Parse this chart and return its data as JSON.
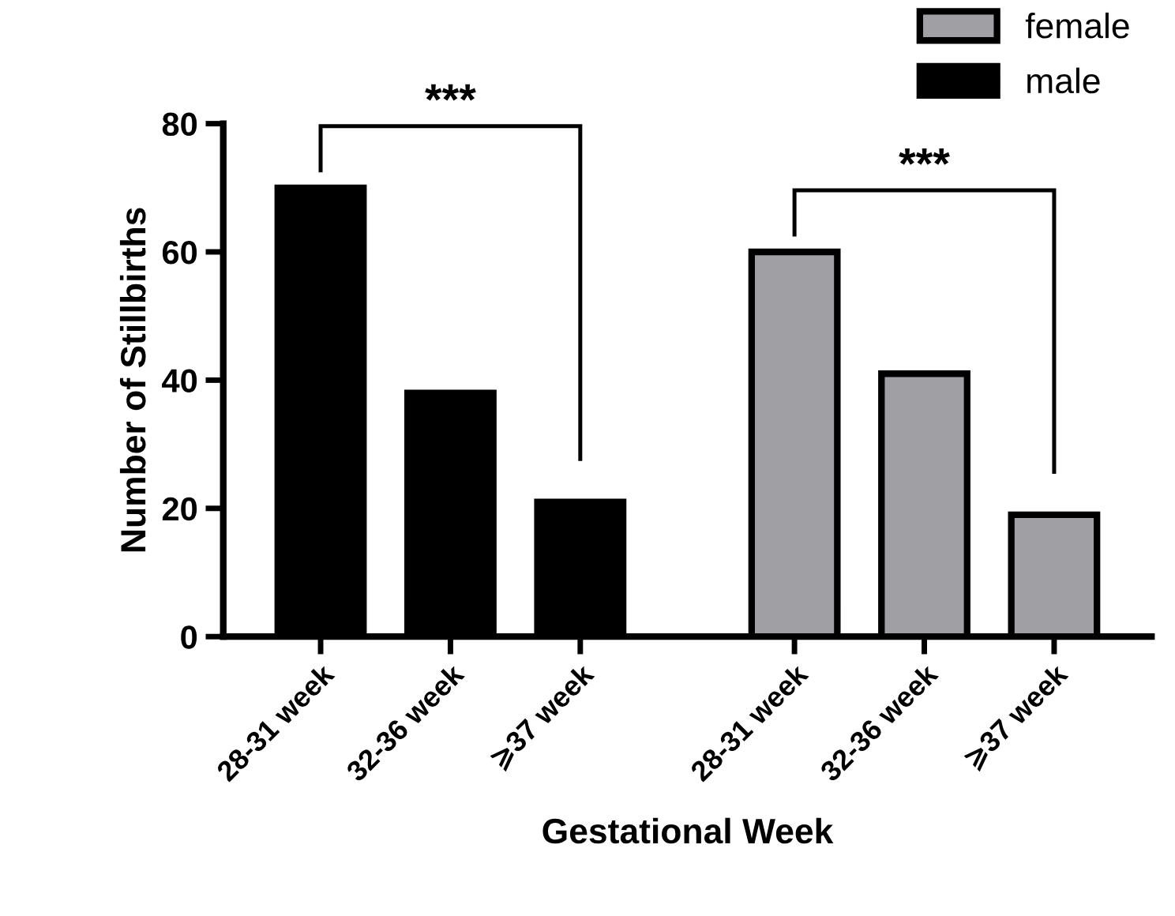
{
  "chart_data": {
    "type": "bar",
    "xlabel": "Gestational Week",
    "ylabel": "Number of Stillbirths",
    "categories": [
      "28-31 week",
      "32-36 week",
      "⩾37 week",
      "28-31 week",
      "32-36 week",
      "⩾37 week"
    ],
    "series": [
      {
        "name": "male",
        "color": "#000000",
        "values": [
          70,
          38,
          21,
          null,
          null,
          null
        ]
      },
      {
        "name": "female",
        "color": "#a0a0a4",
        "values": [
          null,
          null,
          null,
          60,
          41,
          19
        ]
      }
    ],
    "ylim": [
      0,
      80
    ],
    "yticks": [
      0,
      20,
      40,
      60,
      80
    ],
    "grid": false,
    "legend": "top right",
    "annotations": [
      "***",
      "***"
    ]
  }
}
